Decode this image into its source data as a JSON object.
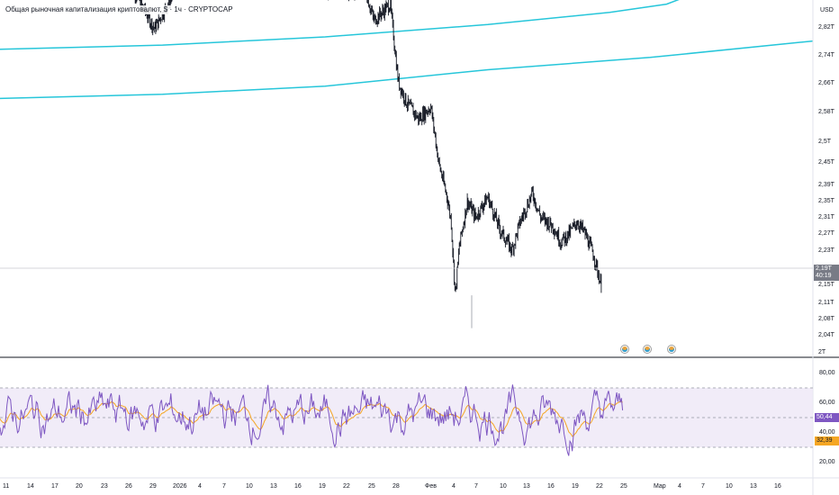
{
  "header": {
    "title": "Общая рыночная капитализация криптовалют, $ · 1ч · CRYPTOCAP",
    "currency": "USD"
  },
  "price_axis": {
    "ticks": [
      "2,82T",
      "2,74T",
      "2,66T",
      "2,58T",
      "2,5T",
      "2,45T",
      "2,39T",
      "2,35T",
      "2,31T",
      "2,27T",
      "2,23T",
      "2,15T",
      "2,11T",
      "2,08T",
      "2,04T",
      "2T"
    ],
    "current_price": "2,19T",
    "countdown": "40:19"
  },
  "rsi_axis": {
    "ticks": [
      "80,00",
      "60,00",
      "40,00",
      "20,00"
    ],
    "rsi_value": "50,44",
    "ma_value": "32,39"
  },
  "time_axis": {
    "ticks": [
      "11",
      "14",
      "17",
      "20",
      "23",
      "26",
      "29",
      "2026",
      "4",
      "7",
      "10",
      "13",
      "16",
      "19",
      "22",
      "25",
      "28",
      "Фев",
      "4",
      "7",
      "10",
      "13",
      "16",
      "19",
      "22",
      "25",
      "Мар",
      "4",
      "7",
      "10",
      "13",
      "16"
    ]
  },
  "colors": {
    "candle": "#131722",
    "moving_average": "#26c6da",
    "rsi_line": "#7e57c2",
    "rsi_ma": "#f5a623",
    "rsi_band": "#ede7f6",
    "rsi_value_badge": "#7e57c2",
    "rsi_ma_badge": "#f5a623"
  },
  "chart_data": {
    "type": "line",
    "price_ylim": [
      2.0,
      2.86
    ],
    "rsi_ylim": [
      10,
      90
    ],
    "rsi_bands": [
      30,
      50,
      70
    ],
    "price_path": [
      [
        0.16,
        2.9
      ],
      [
        0.19,
        2.79
      ],
      [
        0.22,
        2.9
      ],
      [
        0.45,
        2.88
      ],
      [
        0.46,
        2.81
      ],
      [
        0.48,
        2.85
      ],
      [
        0.49,
        2.66
      ],
      [
        0.5,
        2.61
      ],
      [
        0.515,
        2.57
      ],
      [
        0.52,
        2.58
      ],
      [
        0.53,
        2.6
      ],
      [
        0.54,
        2.46
      ],
      [
        0.55,
        2.38
      ],
      [
        0.555,
        2.32
      ],
      [
        0.56,
        2.14
      ],
      [
        0.565,
        2.26
      ],
      [
        0.575,
        2.37
      ],
      [
        0.585,
        2.33
      ],
      [
        0.6,
        2.38
      ],
      [
        0.615,
        2.3
      ],
      [
        0.63,
        2.25
      ],
      [
        0.64,
        2.32
      ],
      [
        0.655,
        2.39
      ],
      [
        0.665,
        2.33
      ],
      [
        0.68,
        2.31
      ],
      [
        0.69,
        2.27
      ],
      [
        0.7,
        2.29
      ],
      [
        0.71,
        2.32
      ],
      [
        0.72,
        2.29
      ],
      [
        0.73,
        2.24
      ],
      [
        0.74,
        2.16
      ]
    ],
    "ma_series": [
      {
        "values": [
          [
            0.0,
            2.74
          ],
          [
            0.2,
            2.75
          ],
          [
            0.4,
            2.77
          ],
          [
            0.6,
            2.8
          ],
          [
            0.75,
            2.83
          ],
          [
            0.82,
            2.85
          ],
          [
            0.86,
            2.88
          ],
          [
            0.9,
            2.92
          ]
        ]
      },
      {
        "values": [
          [
            0.0,
            2.62
          ],
          [
            0.2,
            2.63
          ],
          [
            0.4,
            2.65
          ],
          [
            0.6,
            2.69
          ],
          [
            0.8,
            2.72
          ],
          [
            1.0,
            2.76
          ]
        ]
      }
    ]
  }
}
